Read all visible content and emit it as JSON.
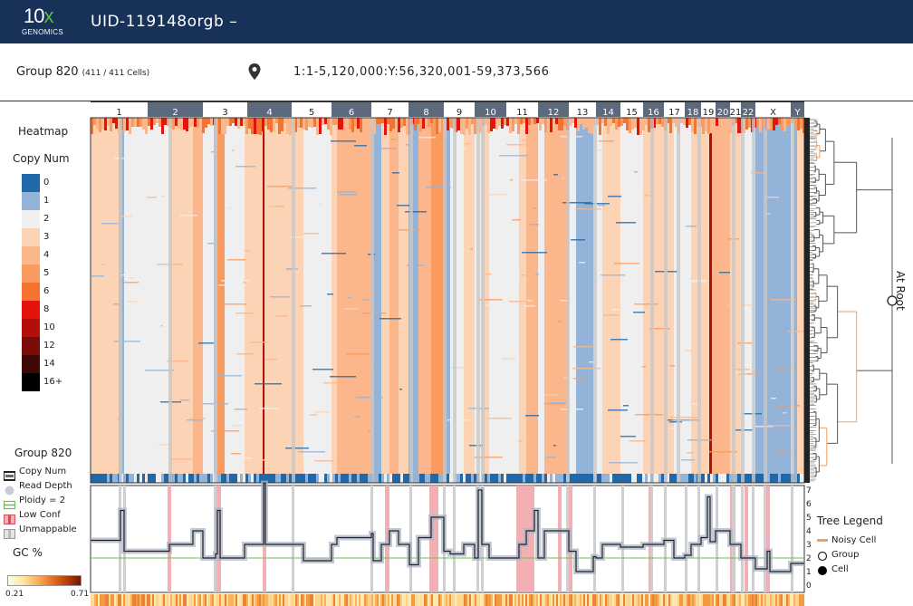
{
  "header": {
    "logo_text": "10",
    "logo_x": "x",
    "logo_sub": "GENOMICS",
    "sample_id": "UID-119148orgb –"
  },
  "subbar": {
    "group_label": "Group 820",
    "cell_count": "(411 / 411 Cells)",
    "locus": "1:1-5,120,000:Y:56,320,001-59,373,566"
  },
  "legend": {
    "heatmap_title": "Heatmap",
    "copy_num_title": "Copy Num",
    "copy_numbers": [
      {
        "label": "0",
        "color": "#1f68a9"
      },
      {
        "label": "1",
        "color": "#93b3d8"
      },
      {
        "label": "2",
        "color": "#efefef"
      },
      {
        "label": "3",
        "color": "#fdd3b5"
      },
      {
        "label": "4",
        "color": "#fbb68b"
      },
      {
        "label": "5",
        "color": "#f99a5e"
      },
      {
        "label": "6",
        "color": "#f4742f"
      },
      {
        "label": "8",
        "color": "#e4130b"
      },
      {
        "label": "10",
        "color": "#b30e09"
      },
      {
        "label": "12",
        "color": "#7a0b06"
      },
      {
        "label": "14",
        "color": "#3e0905"
      },
      {
        "label": "16+",
        "color": "#000000"
      }
    ],
    "group_title": "Group 820",
    "tracks": [
      {
        "label": "Copy Num",
        "icon": "copy-num-icon"
      },
      {
        "label": "Read Depth",
        "icon": "read-depth-icon"
      },
      {
        "label": "Ploidy = 2",
        "icon": "ploidy-icon"
      },
      {
        "label": "Low Conf",
        "icon": "low-conf-icon"
      },
      {
        "label": "Unmappable",
        "icon": "unmappable-icon"
      }
    ],
    "gc_title": "GC %",
    "gc_min": "0.21",
    "gc_max": "0.71"
  },
  "chromosomes": [
    {
      "label": "1",
      "dark": false
    },
    {
      "label": "2",
      "dark": true
    },
    {
      "label": "3",
      "dark": false
    },
    {
      "label": "4",
      "dark": true
    },
    {
      "label": "5",
      "dark": false
    },
    {
      "label": "6",
      "dark": true
    },
    {
      "label": "7",
      "dark": false
    },
    {
      "label": "8",
      "dark": true
    },
    {
      "label": "9",
      "dark": false
    },
    {
      "label": "10",
      "dark": true
    },
    {
      "label": "11",
      "dark": false
    },
    {
      "label": "12",
      "dark": true
    },
    {
      "label": "13",
      "dark": false
    },
    {
      "label": "14",
      "dark": true
    },
    {
      "label": "15",
      "dark": false
    },
    {
      "label": "16",
      "dark": true
    },
    {
      "label": "17",
      "dark": false
    },
    {
      "label": "18",
      "dark": true
    },
    {
      "label": "19",
      "dark": false
    },
    {
      "label": "20",
      "dark": true
    },
    {
      "label": "21",
      "dark": false
    },
    {
      "label": "22",
      "dark": true
    },
    {
      "label": "X",
      "dark": false
    },
    {
      "label": "Y",
      "dark": true
    }
  ],
  "profile_axis": [
    "0",
    "1",
    "2",
    "3",
    "4",
    "5",
    "6",
    "7"
  ],
  "tree_legend": {
    "title": "Tree Legend",
    "items": [
      {
        "label": "Noisy Cell",
        "icon": "noisy-cell-icon",
        "color": "#f0a060"
      },
      {
        "label": "Group",
        "icon": "group-icon"
      },
      {
        "label": "Cell",
        "icon": "cell-icon"
      }
    ]
  },
  "tree": {
    "root_label": "At Root"
  }
}
